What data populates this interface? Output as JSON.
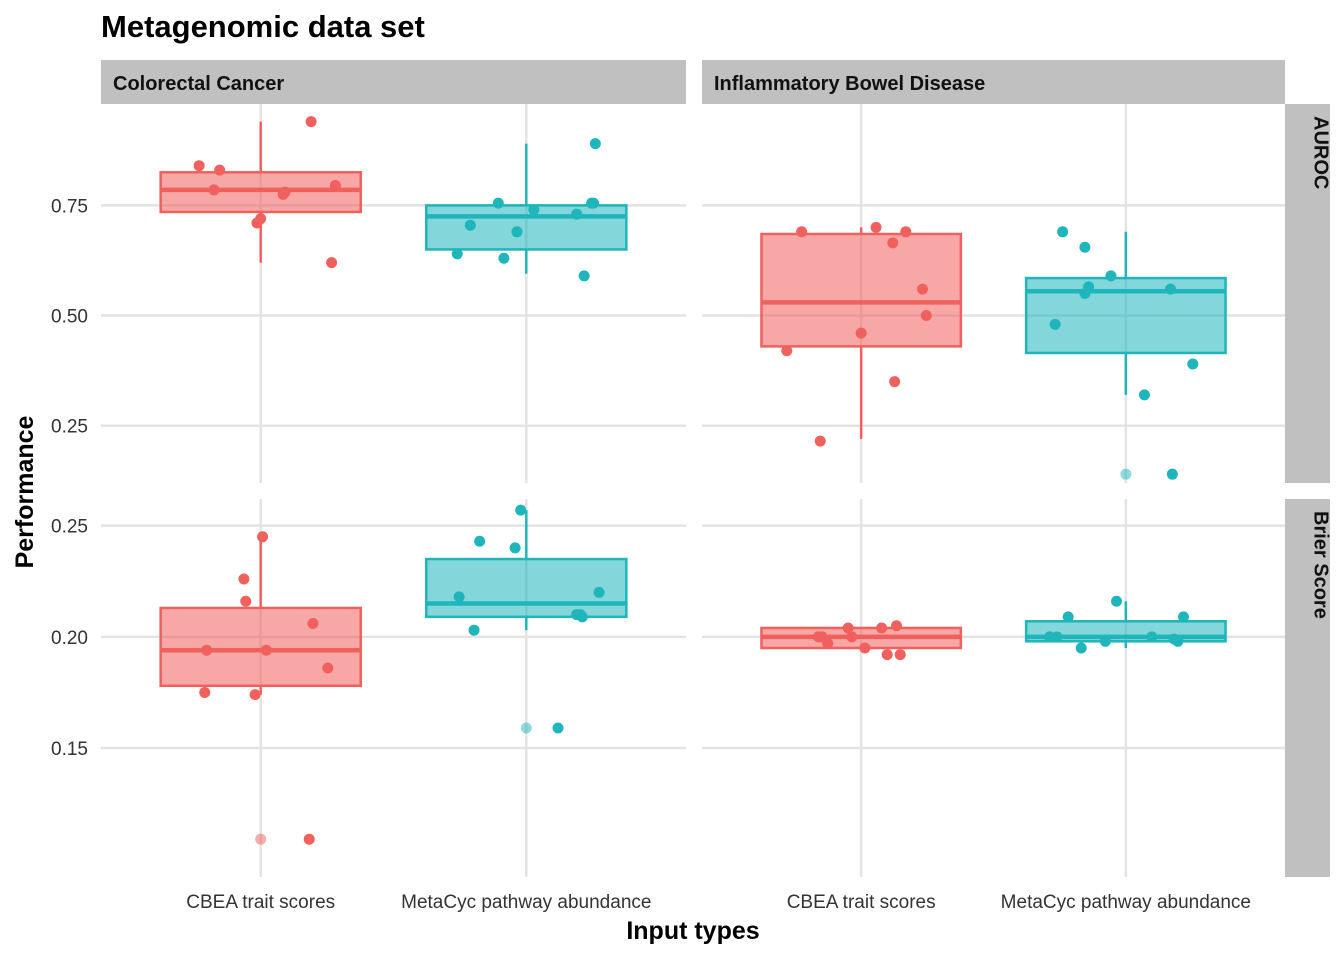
{
  "chart_data": {
    "type": "box",
    "title": "Metagenomic data set",
    "xlabel": "Input types",
    "ylabel": "Performance",
    "grid": true,
    "legend": "none",
    "colors": {
      "CBEA trait scores": "#F0605D",
      "MetaCyc pathway abundance": "#1EB5BB"
    },
    "facet_columns": [
      "Colorectal Cancer",
      "Inflammatory Bowel Disease"
    ],
    "facet_rows": [
      {
        "name": "AUROC",
        "ylim": [
          0.12,
          0.98
        ],
        "ticks": [
          0.25,
          0.5,
          0.75
        ],
        "tick_labels": [
          "0.25",
          "0.50",
          "0.75"
        ]
      },
      {
        "name": "Brier Score",
        "ylim": [
          0.092,
          0.262
        ],
        "ticks": [
          0.15,
          0.2,
          0.25
        ],
        "tick_labels": [
          "0.15",
          "0.20",
          "0.25"
        ]
      }
    ],
    "categories": [
      "CBEA trait scores",
      "MetaCyc pathway abundance"
    ],
    "panels": [
      {
        "column": "Colorectal Cancer",
        "row": "AUROC",
        "groups": [
          {
            "category": "CBEA trait scores",
            "box": {
              "whisker_low": 0.62,
              "q1": 0.735,
              "median": 0.785,
              "q3": 0.825,
              "whisker_high": 0.94
            },
            "points": [
              [
                -0.33,
                0.84
              ],
              [
                -0.25,
                0.785
              ],
              [
                -0.22,
                0.83
              ],
              [
                -0.02,
                0.71
              ],
              [
                0.0,
                0.72
              ],
              [
                0.12,
                0.775
              ],
              [
                0.13,
                0.78
              ],
              [
                0.27,
                0.94
              ],
              [
                0.38,
                0.62
              ],
              [
                0.4,
                0.795
              ]
            ],
            "outliers": []
          },
          {
            "category": "MetaCyc pathway abundance",
            "box": {
              "whisker_low": 0.595,
              "q1": 0.65,
              "median": 0.725,
              "q3": 0.75,
              "whisker_high": 0.89
            },
            "points": [
              [
                -0.37,
                0.64
              ],
              [
                -0.3,
                0.705
              ],
              [
                -0.12,
                0.63
              ],
              [
                -0.15,
                0.755
              ],
              [
                -0.05,
                0.69
              ],
              [
                0.04,
                0.74
              ],
              [
                0.27,
                0.73
              ],
              [
                0.31,
                0.59
              ],
              [
                0.35,
                0.755
              ],
              [
                0.36,
                0.755
              ],
              [
                0.37,
                0.89
              ]
            ],
            "outliers": []
          }
        ]
      },
      {
        "column": "Inflammatory Bowel Disease",
        "row": "AUROC",
        "groups": [
          {
            "category": "CBEA trait scores",
            "box": {
              "whisker_low": 0.22,
              "q1": 0.43,
              "median": 0.53,
              "q3": 0.685,
              "whisker_high": 0.7
            },
            "points": [
              [
                -0.4,
                0.42
              ],
              [
                -0.32,
                0.69
              ],
              [
                -0.22,
                0.215
              ],
              [
                0.0,
                0.46
              ],
              [
                0.08,
                0.7
              ],
              [
                0.17,
                0.665
              ],
              [
                0.18,
                0.35
              ],
              [
                0.24,
                0.69
              ],
              [
                0.33,
                0.56
              ],
              [
                0.35,
                0.5
              ]
            ],
            "outliers": []
          },
          {
            "category": "MetaCyc pathway abundance",
            "box": {
              "whisker_low": 0.32,
              "q1": 0.415,
              "median": 0.555,
              "q3": 0.585,
              "whisker_high": 0.69
            },
            "points": [
              [
                -0.38,
                0.48
              ],
              [
                -0.34,
                0.69
              ],
              [
                -0.22,
                0.55
              ],
              [
                -0.2,
                0.565
              ],
              [
                -0.22,
                0.655
              ],
              [
                -0.08,
                0.59
              ],
              [
                0.1,
                0.32
              ],
              [
                0.24,
                0.56
              ],
              [
                0.25,
                0.14
              ],
              [
                0.36,
                0.39
              ]
            ],
            "outliers": [
              [
                0.0,
                0.14
              ]
            ]
          }
        ]
      },
      {
        "column": "Colorectal Cancer",
        "row": "Brier Score",
        "groups": [
          {
            "category": "CBEA trait scores",
            "box": {
              "whisker_low": 0.174,
              "q1": 0.178,
              "median": 0.194,
              "q3": 0.213,
              "whisker_high": 0.245
            },
            "points": [
              [
                -0.3,
                0.175
              ],
              [
                -0.29,
                0.194
              ],
              [
                -0.09,
                0.226
              ],
              [
                -0.08,
                0.216
              ],
              [
                -0.03,
                0.174
              ],
              [
                0.01,
                0.245
              ],
              [
                0.03,
                0.194
              ],
              [
                0.28,
                0.206
              ],
              [
                0.26,
                0.109
              ],
              [
                0.36,
                0.186
              ]
            ],
            "outliers": [
              [
                0.0,
                0.109
              ]
            ]
          },
          {
            "category": "MetaCyc pathway abundance",
            "box": {
              "whisker_low": 0.203,
              "q1": 0.209,
              "median": 0.215,
              "q3": 0.235,
              "whisker_high": 0.257
            },
            "points": [
              [
                -0.36,
                0.218
              ],
              [
                -0.28,
                0.203
              ],
              [
                -0.25,
                0.243
              ],
              [
                -0.06,
                0.24
              ],
              [
                -0.03,
                0.257
              ],
              [
                0.17,
                0.159
              ],
              [
                0.27,
                0.21
              ],
              [
                0.29,
                0.21
              ],
              [
                0.3,
                0.209
              ],
              [
                0.39,
                0.22
              ]
            ],
            "outliers": [
              [
                0.0,
                0.159
              ]
            ]
          }
        ]
      },
      {
        "column": "Inflammatory Bowel Disease",
        "row": "Brier Score",
        "groups": [
          {
            "category": "CBEA trait scores",
            "box": {
              "whisker_low": 0.195,
              "q1": 0.195,
              "median": 0.2,
              "q3": 0.204,
              "whisker_high": 0.204
            },
            "points": [
              [
                -0.23,
                0.2
              ],
              [
                -0.21,
                0.2
              ],
              [
                -0.18,
                0.197
              ],
              [
                -0.07,
                0.204
              ],
              [
                -0.05,
                0.2
              ],
              [
                0.02,
                0.195
              ],
              [
                0.11,
                0.204
              ],
              [
                0.14,
                0.192
              ],
              [
                0.19,
                0.205
              ],
              [
                0.21,
                0.192
              ]
            ],
            "outliers": []
          },
          {
            "category": "MetaCyc pathway abundance",
            "box": {
              "whisker_low": 0.195,
              "q1": 0.198,
              "median": 0.2,
              "q3": 0.207,
              "whisker_high": 0.216
            },
            "points": [
              [
                -0.41,
                0.2
              ],
              [
                -0.37,
                0.2
              ],
              [
                -0.31,
                0.209
              ],
              [
                -0.24,
                0.195
              ],
              [
                -0.11,
                0.198
              ],
              [
                -0.05,
                0.216
              ],
              [
                0.14,
                0.2
              ],
              [
                0.26,
                0.199
              ],
              [
                0.28,
                0.198
              ],
              [
                0.31,
                0.209
              ]
            ],
            "outliers": []
          }
        ]
      }
    ]
  }
}
